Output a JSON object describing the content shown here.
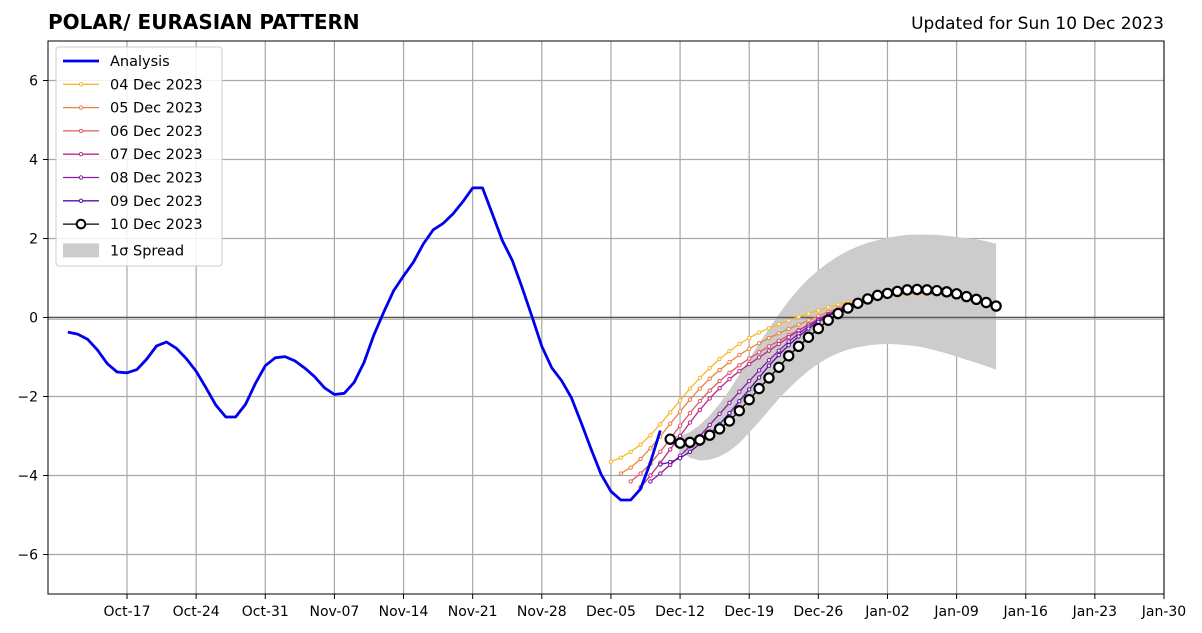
{
  "chart_data": {
    "type": "line",
    "title": "POLAR/ EURASIAN  PATTERN",
    "updated": "Updated for Sun 10 Dec 2023",
    "ylim": [
      -7,
      7
    ],
    "yticks": [
      -6,
      -4,
      -2,
      0,
      2,
      4,
      6
    ],
    "ytick_labels": [
      "−6",
      "−4",
      "−2",
      "0",
      "2",
      "4",
      "6"
    ],
    "xlim": [
      "2023-10-09",
      "2024-01-30"
    ],
    "xticks": [
      "2023-10-17",
      "2023-10-24",
      "2023-10-31",
      "2023-11-07",
      "2023-11-14",
      "2023-11-21",
      "2023-11-28",
      "2023-12-05",
      "2023-12-12",
      "2023-12-19",
      "2023-12-26",
      "2024-01-02",
      "2024-01-09",
      "2024-01-16",
      "2024-01-23",
      "2024-01-30"
    ],
    "xtick_labels": [
      "Oct-17",
      "Oct-24",
      "Oct-31",
      "Nov-07",
      "Nov-14",
      "Nov-21",
      "Nov-28",
      "Dec-05",
      "Dec-12",
      "Dec-19",
      "Dec-26",
      "Jan-02",
      "Jan-09",
      "Jan-16",
      "Jan-23",
      "Jan-30"
    ],
    "grid": true,
    "legend_position": "upper-left",
    "spread_label": "1σ Spread",
    "analysis": {
      "name": "Analysis",
      "color": "#0000ee",
      "start": "2023-10-11",
      "values": [
        -0.37,
        -0.42,
        -0.55,
        -0.82,
        -1.17,
        -1.38,
        -1.4,
        -1.32,
        -1.05,
        -0.72,
        -0.62,
        -0.78,
        -1.04,
        -1.36,
        -1.78,
        -2.22,
        -2.52,
        -2.52,
        -2.2,
        -1.67,
        -1.22,
        -1.02,
        -0.99,
        -1.1,
        -1.28,
        -1.5,
        -1.78,
        -1.95,
        -1.92,
        -1.64,
        -1.14,
        -0.44,
        0.14,
        0.68,
        1.05,
        1.4,
        1.86,
        2.22,
        2.38,
        2.62,
        2.93,
        3.28,
        3.28,
        2.62,
        1.95,
        1.45,
        0.76,
        0.03,
        -0.73,
        -1.27,
        -1.6,
        -2.03,
        -2.67,
        -3.34,
        -3.97,
        -4.4,
        -4.62,
        -4.62,
        -4.34,
        -3.67,
        -2.86
      ]
    },
    "forecasts": [
      {
        "name": "04 Dec 2023",
        "color": "#f7b731",
        "start": "2023-12-05",
        "values": [
          -3.65,
          -3.55,
          -3.4,
          -3.22,
          -2.98,
          -2.7,
          -2.4,
          -2.1,
          -1.8,
          -1.53,
          -1.28,
          -1.05,
          -0.85,
          -0.67,
          -0.52,
          -0.38,
          -0.27,
          -0.17,
          -0.08,
          0.02,
          0.1,
          0.18,
          0.26,
          0.33,
          0.39,
          0.44,
          0.49,
          0.53,
          0.56,
          0.58,
          0.59,
          0.6,
          0.61,
          0.61,
          0.61
        ]
      },
      {
        "name": "05 Dec 2023",
        "color": "#ee8240",
        "start": "2023-12-06",
        "values": [
          -3.95,
          -3.8,
          -3.58,
          -3.31,
          -3.01,
          -2.69,
          -2.38,
          -2.08,
          -1.8,
          -1.55,
          -1.33,
          -1.13,
          -0.95,
          -0.79,
          -0.65,
          -0.52,
          -0.4,
          -0.29,
          -0.18,
          -0.07,
          0.04,
          0.14,
          0.24,
          0.33,
          0.41,
          0.48,
          0.54,
          0.58,
          0.61,
          0.62,
          0.63,
          0.62,
          0.61,
          0.6
        ]
      },
      {
        "name": "06 Dec 2023",
        "color": "#dc5a6a",
        "start": "2023-12-07",
        "values": [
          -4.15,
          -3.95,
          -3.7,
          -3.4,
          -3.07,
          -2.74,
          -2.42,
          -2.12,
          -1.85,
          -1.61,
          -1.4,
          -1.21,
          -1.04,
          -0.88,
          -0.73,
          -0.59,
          -0.45,
          -0.32,
          -0.19,
          -0.06,
          0.06,
          0.18,
          0.28,
          0.37,
          0.45,
          0.51,
          0.56,
          0.59,
          0.61,
          0.62,
          0.61,
          0.6,
          0.58
        ]
      },
      {
        "name": "07 Dec 2023",
        "color": "#b82b87",
        "start": "2023-12-08",
        "values": [
          -4.3,
          -4.0,
          -3.68,
          -3.34,
          -3.0,
          -2.66,
          -2.34,
          -2.05,
          -1.79,
          -1.56,
          -1.36,
          -1.18,
          -1.01,
          -0.84,
          -0.67,
          -0.5,
          -0.33,
          -0.18,
          -0.04,
          0.09,
          0.2,
          0.3,
          0.39,
          0.46,
          0.52,
          0.57,
          0.6,
          0.62,
          0.63,
          0.62,
          0.61,
          0.59
        ]
      },
      {
        "name": "08 Dec 2023",
        "color": "#8b1aa8",
        "start": "2023-12-09",
        "values": [
          -4.15,
          -3.95,
          -3.73,
          -3.5,
          -3.26,
          -3.0,
          -2.72,
          -2.44,
          -2.16,
          -1.88,
          -1.61,
          -1.34,
          -1.08,
          -0.84,
          -0.61,
          -0.41,
          -0.23,
          -0.07,
          0.07,
          0.19,
          0.3,
          0.39,
          0.47,
          0.54,
          0.59,
          0.63,
          0.65,
          0.66,
          0.66,
          0.65,
          0.62,
          0.58,
          0.52,
          0.45
        ]
      },
      {
        "name": "09 Dec 2023",
        "color": "#5a0fa0",
        "start": "2023-12-10",
        "values": [
          -3.72,
          -3.66,
          -3.56,
          -3.4,
          -3.2,
          -2.96,
          -2.7,
          -2.42,
          -2.12,
          -1.82,
          -1.52,
          -1.22,
          -0.95,
          -0.7,
          -0.48,
          -0.28,
          -0.11,
          0.04,
          0.17,
          0.29,
          0.39,
          0.48,
          0.55,
          0.61,
          0.66,
          0.69,
          0.71,
          0.71,
          0.7,
          0.68,
          0.64,
          0.58,
          0.52
        ]
      },
      {
        "name": "10 Dec 2023",
        "color": "#000000",
        "start": "2023-12-11",
        "values": [
          -3.08,
          -3.18,
          -3.16,
          -3.1,
          -2.98,
          -2.82,
          -2.62,
          -2.36,
          -2.08,
          -1.8,
          -1.53,
          -1.26,
          -0.97,
          -0.73,
          -0.5,
          -0.28,
          -0.07,
          0.1,
          0.24,
          0.36,
          0.47,
          0.56,
          0.61,
          0.66,
          0.7,
          0.71,
          0.7,
          0.68,
          0.65,
          0.6,
          0.53,
          0.46,
          0.38,
          0.29
        ]
      }
    ],
    "spread": {
      "start": "2023-12-11",
      "upper": [
        -3.0,
        -3.0,
        -2.9,
        -2.72,
        -2.48,
        -2.18,
        -1.84,
        -1.45,
        -1.05,
        -0.65,
        -0.28,
        0.08,
        0.42,
        0.72,
        0.98,
        1.2,
        1.39,
        1.55,
        1.69,
        1.8,
        1.89,
        1.96,
        2.02,
        2.06,
        2.09,
        2.1,
        2.1,
        2.09,
        2.07,
        2.04,
        2.01,
        1.98,
        1.93,
        1.87
      ],
      "lower": [
        -3.14,
        -3.37,
        -3.55,
        -3.62,
        -3.6,
        -3.52,
        -3.38,
        -3.18,
        -2.92,
        -2.64,
        -2.35,
        -2.06,
        -1.8,
        -1.56,
        -1.35,
        -1.17,
        -1.02,
        -0.9,
        -0.81,
        -0.75,
        -0.71,
        -0.68,
        -0.67,
        -0.68,
        -0.7,
        -0.73,
        -0.78,
        -0.84,
        -0.91,
        -0.99,
        -1.07,
        -1.15,
        -1.23,
        -1.32
      ]
    }
  }
}
